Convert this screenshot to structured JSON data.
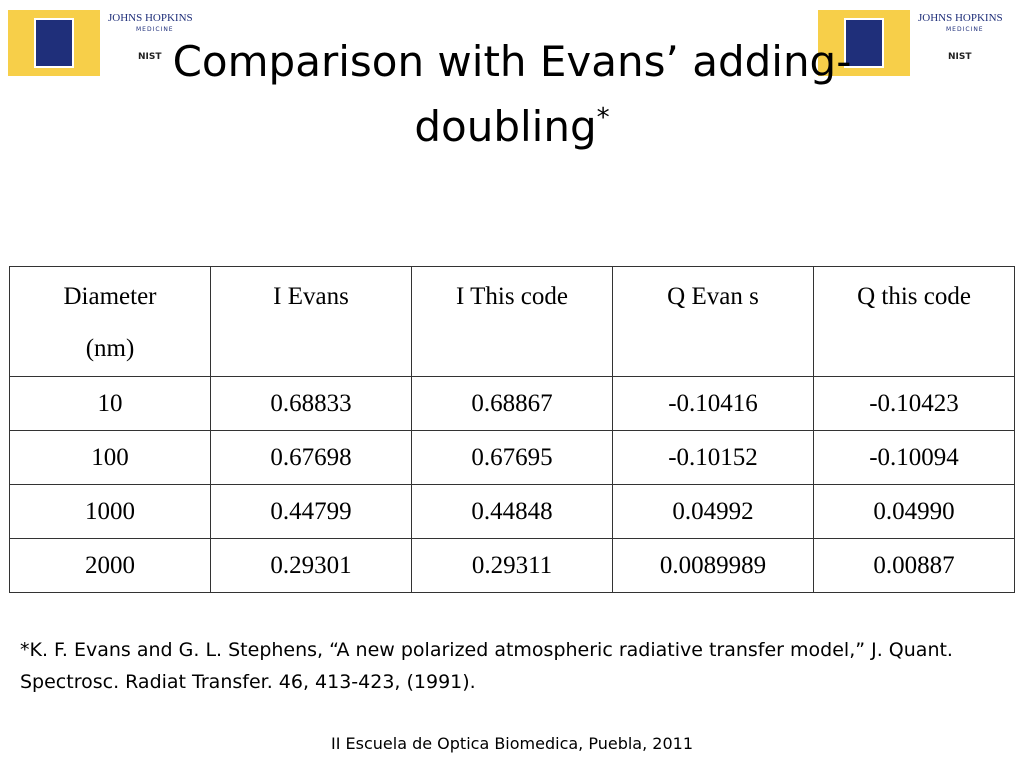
{
  "header": {
    "title_lines": [
      "Comparison with Evans’ adding-",
      "doubling"
    ],
    "title_mark": "*"
  },
  "logos": {
    "name": "JOHNS HOPKINS",
    "sub": "MEDICINE",
    "nist": "NIST"
  },
  "table": {
    "header": [
      [
        "Diameter",
        "(nm)"
      ],
      "I Evans",
      "I This code",
      "Q Evan s",
      "Q this code"
    ],
    "rows": [
      [
        "10",
        "0.68833",
        "0.68867",
        "-0.10416",
        "-0.10423"
      ],
      [
        "100",
        "0.67698",
        "0.67695",
        "-0.10152",
        "-0.10094"
      ],
      [
        "1000",
        "0.44799",
        "0.44848",
        "0.04992",
        "0.04990"
      ],
      [
        "2000",
        "0.29301",
        "0.29311",
        "0.0089989",
        "0.00887"
      ]
    ]
  },
  "footnote": [
    "*K. F. Evans and G. L. Stephens, “A new polarized atmospheric radiative transfer model,” J. Quant.",
    "Spectrosc. Radiat Transfer. 46, 413-423, (1991)."
  ],
  "footer": "II Escuela de Optica Biomedica, Puebla, 2011"
}
